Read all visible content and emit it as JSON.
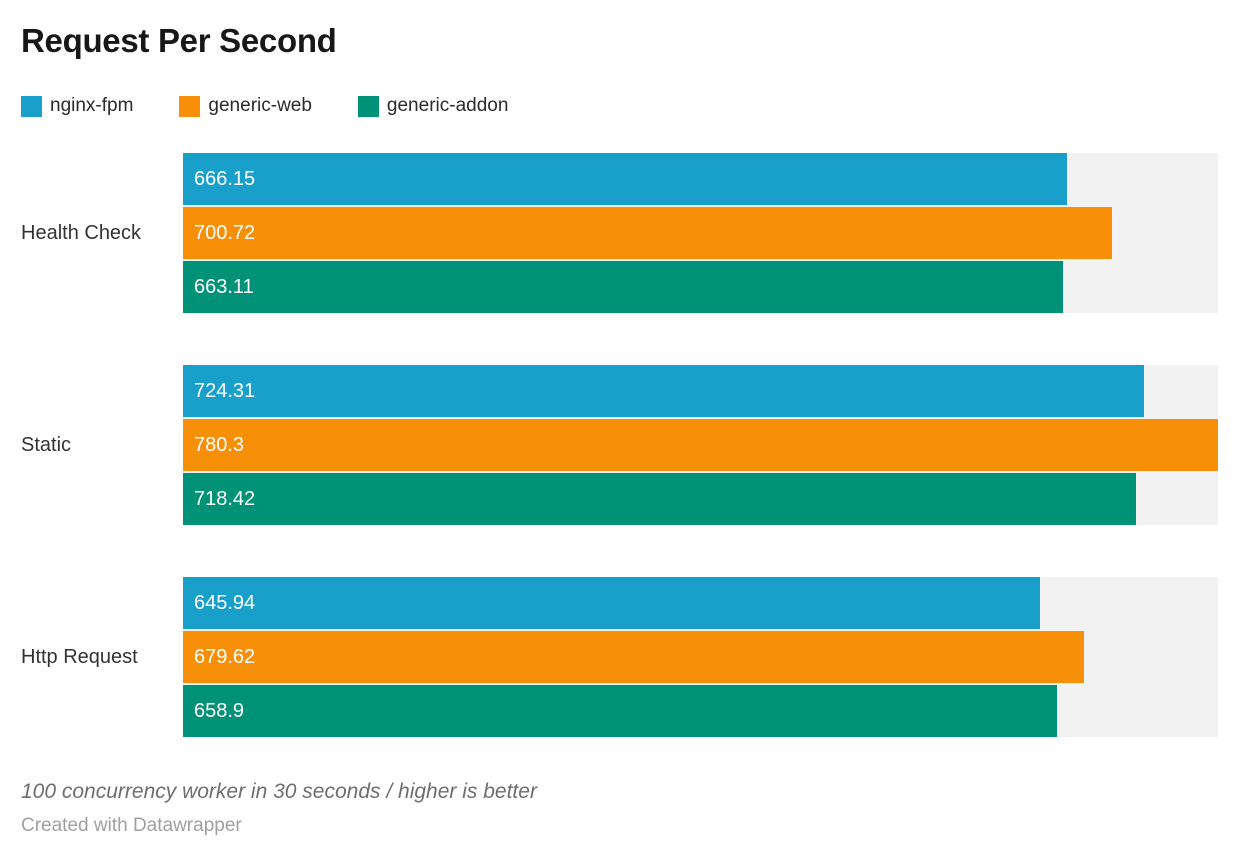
{
  "title": "Request Per Second",
  "footer": {
    "note": "100 concurrency worker in 30 seconds / higher is better",
    "attribution": "Created with Datawrapper"
  },
  "chart_data": {
    "type": "bar",
    "orientation": "horizontal",
    "title": "Request Per Second",
    "categories": [
      "Health Check",
      "Static",
      "Http Request"
    ],
    "series": [
      {
        "name": "nginx-fpm",
        "color": "#18a0ca",
        "values": [
          666.15,
          724.31,
          645.94
        ]
      },
      {
        "name": "generic-web",
        "color": "#f88f08",
        "values": [
          700.72,
          780.3,
          679.62
        ]
      },
      {
        "name": "generic-addon",
        "color": "#009276",
        "values": [
          663.11,
          718.42,
          658.9
        ]
      }
    ],
    "xlim": [
      0,
      780.3
    ],
    "value_labels": "inside-start",
    "track_color": "#f2f2f2",
    "grid": false,
    "axis_ticks": "none",
    "legend_position": "top",
    "note": "100 concurrency worker in 30 seconds / higher is better"
  }
}
